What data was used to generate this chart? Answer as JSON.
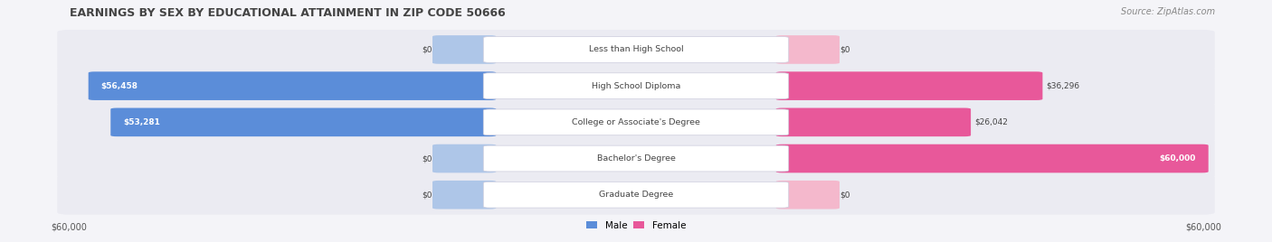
{
  "title": "EARNINGS BY SEX BY EDUCATIONAL ATTAINMENT IN ZIP CODE 50666",
  "source": "Source: ZipAtlas.com",
  "categories": [
    "Less than High School",
    "High School Diploma",
    "College or Associate's Degree",
    "Bachelor's Degree",
    "Graduate Degree"
  ],
  "male_values": [
    0,
    56458,
    53281,
    0,
    0
  ],
  "female_values": [
    0,
    36296,
    26042,
    60000,
    0
  ],
  "male_labels": [
    "$0",
    "$56,458",
    "$53,281",
    "$0",
    "$0"
  ],
  "female_labels": [
    "$0",
    "$36,296",
    "$26,042",
    "$60,000",
    "$0"
  ],
  "max_value": 60000,
  "male_color_light": "#aec6e8",
  "male_color_full": "#5b8dd9",
  "female_color_light": "#f4b8cc",
  "female_color_full": "#e8589a",
  "bg_color": "#f4f4f8",
  "row_bg_color": "#ebebf2",
  "axis_label_left": "$60,000",
  "axis_label_right": "$60,000",
  "legend_male": "Male",
  "legend_female": "Female",
  "title_color": "#444444",
  "source_color": "#888888",
  "label_color": "#444444",
  "value_label_color_dark": "#333333",
  "value_label_color_white": "#ffffff"
}
